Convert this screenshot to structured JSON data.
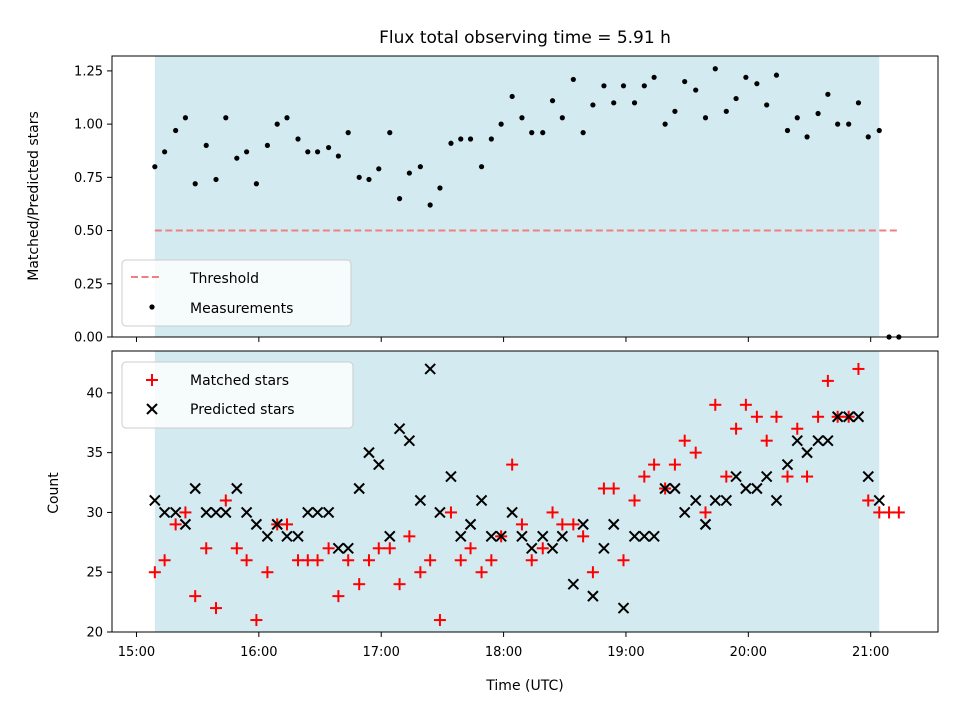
{
  "chart_data": [
    {
      "type": "scatter",
      "panel": "top",
      "title": "Flux total observing time = 5.91 h",
      "xlabel": "",
      "ylabel": "Matched/Predicted stars",
      "ylim": [
        0,
        1.32
      ],
      "yticks": [
        0.0,
        0.25,
        0.5,
        0.75,
        1.0,
        1.25
      ],
      "ytick_labels": [
        "0.00",
        "0.25",
        "0.50",
        "0.75",
        "1.00",
        "1.25"
      ],
      "shaded_span_hours": [
        15.15,
        21.07
      ],
      "shade_color": "#d3eaf0",
      "threshold": {
        "name": "Threshold",
        "value": 0.5,
        "x_range": [
          15.15,
          21.23
        ],
        "color": "#f08080"
      },
      "legend": {
        "position": "lower-left",
        "entries": [
          "Threshold",
          "Measurements"
        ]
      },
      "series": [
        {
          "name": "Measurements",
          "color": "#000000",
          "x": [
            15.15,
            15.23,
            15.32,
            15.4,
            15.48,
            15.57,
            15.65,
            15.73,
            15.82,
            15.9,
            15.98,
            16.07,
            16.15,
            16.23,
            16.32,
            16.4,
            16.48,
            16.57,
            16.65,
            16.73,
            16.82,
            16.9,
            16.98,
            17.07,
            17.15,
            17.23,
            17.32,
            17.4,
            17.48,
            17.57,
            17.65,
            17.73,
            17.82,
            17.9,
            17.98,
            18.07,
            18.15,
            18.23,
            18.32,
            18.4,
            18.48,
            18.57,
            18.65,
            18.73,
            18.82,
            18.9,
            18.98,
            19.07,
            19.15,
            19.23,
            19.32,
            19.4,
            19.48,
            19.57,
            19.65,
            19.73,
            19.82,
            19.9,
            19.98,
            20.07,
            20.15,
            20.23,
            20.32,
            20.4,
            20.48,
            20.57,
            20.65,
            20.73,
            20.82,
            20.9,
            20.98,
            21.07,
            21.15,
            21.23
          ],
          "y": [
            0.8,
            0.87,
            0.97,
            1.03,
            0.72,
            0.9,
            0.74,
            1.03,
            0.84,
            0.87,
            0.72,
            0.9,
            1.0,
            1.03,
            0.93,
            0.87,
            0.87,
            0.89,
            0.85,
            0.96,
            0.75,
            0.74,
            0.79,
            0.96,
            0.65,
            0.77,
            0.8,
            0.62,
            0.7,
            0.91,
            0.93,
            0.93,
            0.8,
            0.93,
            1.0,
            1.13,
            1.03,
            0.96,
            0.96,
            1.11,
            1.03,
            1.21,
            0.96,
            1.09,
            1.18,
            1.1,
            1.18,
            1.1,
            1.18,
            1.22,
            1.0,
            1.06,
            1.2,
            1.16,
            1.03,
            1.26,
            1.06,
            1.12,
            1.22,
            1.19,
            1.09,
            1.23,
            0.97,
            1.03,
            0.94,
            1.05,
            1.14,
            1.0,
            1.0,
            1.1,
            0.94,
            0.97,
            0.0,
            0.0
          ]
        }
      ]
    },
    {
      "type": "scatter",
      "panel": "bottom",
      "xlabel": "Time (UTC)",
      "ylabel": "Count",
      "ylim": [
        20,
        43.5
      ],
      "yticks": [
        20,
        25,
        30,
        35,
        40
      ],
      "xlim_hours": [
        14.8,
        21.55
      ],
      "xticks_hours": [
        15,
        16,
        17,
        18,
        19,
        20,
        21
      ],
      "xtick_labels": [
        "15:00",
        "16:00",
        "17:00",
        "18:00",
        "19:00",
        "20:00",
        "21:00"
      ],
      "shaded_span_hours": [
        15.15,
        21.07
      ],
      "legend": {
        "position": "upper-left",
        "entries": [
          "Matched stars",
          "Predicted stars"
        ]
      },
      "series": [
        {
          "name": "Matched stars",
          "marker": "+",
          "color": "#ff0000",
          "x": [
            15.15,
            15.23,
            15.32,
            15.4,
            15.48,
            15.57,
            15.65,
            15.73,
            15.82,
            15.9,
            15.98,
            16.07,
            16.15,
            16.23,
            16.32,
            16.4,
            16.48,
            16.57,
            16.65,
            16.73,
            16.82,
            16.9,
            16.98,
            17.07,
            17.15,
            17.23,
            17.32,
            17.4,
            17.48,
            17.57,
            17.65,
            17.73,
            17.82,
            17.9,
            17.98,
            18.07,
            18.15,
            18.23,
            18.32,
            18.4,
            18.48,
            18.57,
            18.65,
            18.73,
            18.82,
            18.9,
            18.98,
            19.07,
            19.15,
            19.23,
            19.32,
            19.4,
            19.48,
            19.57,
            19.65,
            19.73,
            19.82,
            19.9,
            19.98,
            20.07,
            20.15,
            20.23,
            20.32,
            20.4,
            20.48,
            20.57,
            20.65,
            20.73,
            20.82,
            20.9,
            20.98,
            21.07,
            21.15,
            21.23
          ],
          "y": [
            25,
            26,
            29,
            30,
            23,
            27,
            22,
            31,
            27,
            26,
            21,
            25,
            29,
            29,
            26,
            26,
            26,
            27,
            23,
            26,
            24,
            26,
            27,
            27,
            24,
            28,
            25,
            26,
            21,
            30,
            26,
            27,
            25,
            26,
            28,
            34,
            29,
            26,
            27,
            30,
            29,
            29,
            28,
            25,
            32,
            32,
            26,
            31,
            33,
            34,
            32,
            34,
            36,
            35,
            30,
            39,
            33,
            37,
            39,
            38,
            36,
            38,
            33,
            37,
            33,
            38,
            41,
            38,
            38,
            42,
            31,
            30,
            30,
            30
          ]
        },
        {
          "name": "Predicted stars",
          "marker": "x",
          "color": "#000000",
          "x": [
            15.15,
            15.23,
            15.32,
            15.4,
            15.48,
            15.57,
            15.65,
            15.73,
            15.82,
            15.9,
            15.98,
            16.07,
            16.15,
            16.23,
            16.32,
            16.4,
            16.48,
            16.57,
            16.65,
            16.73,
            16.82,
            16.9,
            16.98,
            17.07,
            17.15,
            17.23,
            17.32,
            17.4,
            17.48,
            17.57,
            17.65,
            17.73,
            17.82,
            17.9,
            17.98,
            18.07,
            18.15,
            18.23,
            18.32,
            18.4,
            18.48,
            18.57,
            18.65,
            18.73,
            18.82,
            18.9,
            18.98,
            19.07,
            19.15,
            19.23,
            19.32,
            19.4,
            19.48,
            19.57,
            19.65,
            19.73,
            19.82,
            19.9,
            19.98,
            20.07,
            20.15,
            20.23,
            20.32,
            20.4,
            20.48,
            20.57,
            20.65,
            20.73,
            20.82,
            20.9,
            20.98,
            21.07
          ],
          "y": [
            31,
            30,
            30,
            29,
            32,
            30,
            30,
            30,
            32,
            30,
            29,
            28,
            29,
            28,
            28,
            30,
            30,
            30,
            27,
            27,
            32,
            35,
            34,
            28,
            37,
            36,
            31,
            42,
            30,
            33,
            28,
            29,
            31,
            28,
            28,
            30,
            28,
            27,
            28,
            27,
            28,
            24,
            29,
            23,
            27,
            29,
            22,
            28,
            28,
            28,
            32,
            32,
            30,
            31,
            29,
            31,
            31,
            33,
            32,
            32,
            33,
            31,
            34,
            36,
            35,
            36,
            36,
            38,
            38,
            38,
            33,
            31
          ]
        }
      ]
    }
  ]
}
